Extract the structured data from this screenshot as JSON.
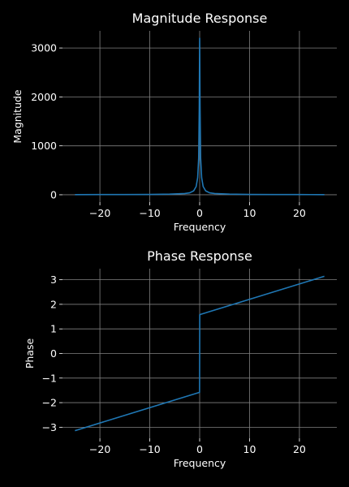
{
  "chart_data": [
    {
      "type": "line",
      "title": "Magnitude Response",
      "xlabel": "Frequency",
      "ylabel": "Magnitude",
      "xlim": [
        -27.5,
        27.5
      ],
      "ylim": [
        -150,
        3350
      ],
      "xticks": [
        -20,
        -10,
        0,
        10,
        20
      ],
      "xtick_labels": [
        "−20",
        "−10",
        "0",
        "10",
        "20"
      ],
      "yticks": [
        0,
        1000,
        2000,
        3000
      ],
      "ytick_labels": [
        "0",
        "1000",
        "2000",
        "3000"
      ],
      "grid": true,
      "series": [
        {
          "color": "#1f77b4",
          "x": [
            -25,
            -20,
            -15,
            -10,
            -6,
            -3,
            -2,
            -1.2,
            -0.7,
            -0.4,
            -0.2,
            -0.08,
            -0.02,
            0,
            0.02,
            0.08,
            0.2,
            0.4,
            0.7,
            1.2,
            2,
            3,
            6,
            10,
            15,
            20,
            25
          ],
          "y": [
            3,
            4,
            5,
            7,
            12,
            25,
            40,
            80,
            170,
            350,
            750,
            1800,
            2900,
            3200,
            2900,
            1800,
            750,
            350,
            170,
            80,
            40,
            25,
            12,
            7,
            5,
            4,
            3
          ]
        }
      ]
    },
    {
      "type": "line",
      "title": "Phase Response",
      "xlabel": "Frequency",
      "ylabel": "Phase",
      "xlim": [
        -27.5,
        27.5
      ],
      "ylim": [
        -3.45,
        3.45
      ],
      "xticks": [
        -20,
        -10,
        0,
        10,
        20
      ],
      "xtick_labels": [
        "−20",
        "−10",
        "0",
        "10",
        "20"
      ],
      "yticks": [
        -3,
        -2,
        -1,
        0,
        1,
        2,
        3
      ],
      "ytick_labels": [
        "−3",
        "−2",
        "−1",
        "0",
        "1",
        "2",
        "3"
      ],
      "grid": true,
      "series": [
        {
          "color": "#1f77b4",
          "x": [
            -25,
            -0.02,
            0.02,
            25
          ],
          "y": [
            -3.14,
            -1.58,
            1.58,
            3.14
          ]
        }
      ]
    }
  ],
  "colors": {
    "background": "#000000",
    "axis": "#ffffff",
    "grid": "#808080",
    "line": "#1f77b4"
  }
}
